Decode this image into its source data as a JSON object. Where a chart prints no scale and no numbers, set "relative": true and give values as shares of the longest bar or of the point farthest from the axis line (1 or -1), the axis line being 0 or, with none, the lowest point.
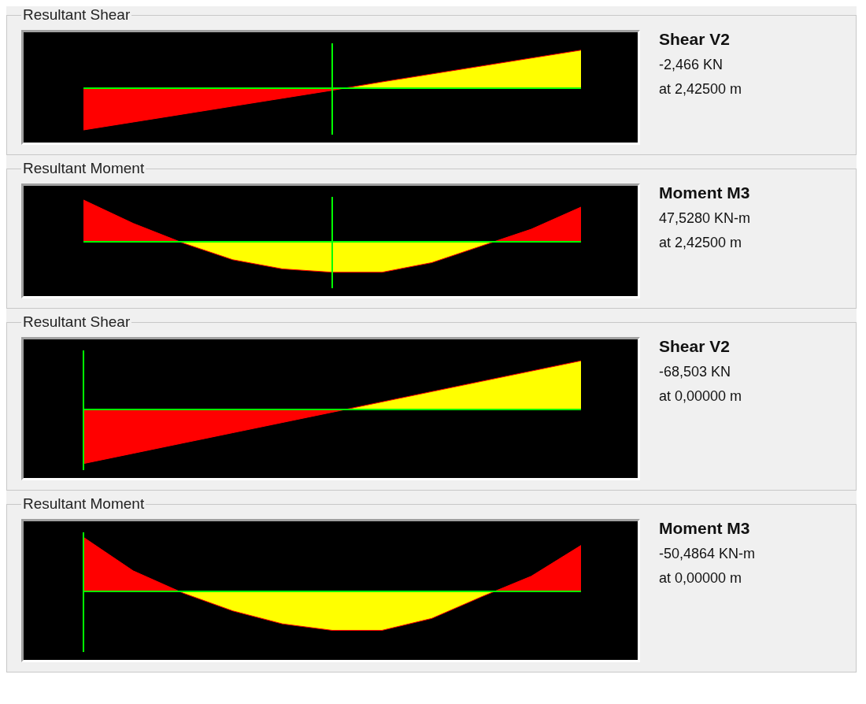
{
  "chart_data": [
    {
      "type": "area",
      "title": "Resultant Shear",
      "relative": true,
      "categories": [
        null,
        null,
        null,
        null,
        null,
        null,
        null,
        null,
        null,
        null,
        null
      ],
      "series": [
        {
          "color": "#ff0000",
          "values": [
            -1,
            -0.81,
            -0.62,
            -0.43,
            -0.24,
            -0.05,
            0.15,
            0.34,
            0.53,
            0.72,
            0.91
          ],
          "colors": [
            "#ff0000",
            "#ff0000",
            "#ff0000",
            "#ff0000",
            "#ff0000",
            "#ff0000",
            "#ffff00",
            "#ffff00",
            "#ffff00",
            "#ffff00",
            "#ffff00"
          ]
        }
      ],
      "ref_lines": [
        {
          "axis": "y",
          "value": 0,
          "color": "#00ff00"
        }
      ],
      "annotations": [
        "Shear V2",
        "-2,466 KN",
        "at 2,42500 m"
      ]
    },
    {
      "type": "area",
      "title": "Resultant Moment",
      "relative": true,
      "categories": [
        null,
        null,
        null,
        null,
        null,
        null,
        null,
        null,
        null,
        null,
        null
      ],
      "series": [
        {
          "color": "#ff0000",
          "values": [
            1,
            0.44,
            -0.03,
            -0.43,
            -0.65,
            -0.73,
            -0.73,
            -0.5,
            -0.1,
            0.3,
            0.83
          ],
          "colors": [
            "#ff0000",
            "#ff0000",
            "#ffff00",
            "#ffff00",
            "#ffff00",
            "#ffff00",
            "#ffff00",
            "#ffff00",
            "#ffff00",
            "#ff0000",
            "#ff0000"
          ]
        }
      ],
      "ref_lines": [
        {
          "axis": "y",
          "value": 0,
          "color": "#00ff00"
        }
      ],
      "annotations": [
        "Moment M3",
        "47,5280 KN-m",
        "at 2,42500 m"
      ]
    },
    {
      "type": "area",
      "title": "Resultant Shear",
      "relative": true,
      "categories": [
        null,
        null,
        null,
        null,
        null,
        null,
        null,
        null,
        null,
        null,
        null
      ],
      "series": [
        {
          "color": "#ff0000",
          "values": [
            -1,
            -0.81,
            -0.62,
            -0.43,
            -0.24,
            -0.05,
            0.14,
            0.33,
            0.52,
            0.71,
            0.9
          ],
          "colors": [
            "#ff0000",
            "#ff0000",
            "#ff0000",
            "#ff0000",
            "#ff0000",
            "#ff0000",
            "#ffff00",
            "#ffff00",
            "#ffff00",
            "#ffff00",
            "#ffff00"
          ]
        }
      ],
      "ref_lines": [
        {
          "axis": "y",
          "value": 0,
          "color": "#00ff00"
        }
      ],
      "annotations": [
        "Shear V2",
        "-68,503 KN",
        "at 0,00000 m"
      ]
    },
    {
      "type": "area",
      "title": "Resultant Moment",
      "relative": true,
      "categories": [
        null,
        null,
        null,
        null,
        null,
        null,
        null,
        null,
        null,
        null,
        null
      ],
      "series": [
        {
          "color": "#ff0000",
          "values": [
            1,
            0.38,
            -0.03,
            -0.36,
            -0.6,
            -0.72,
            -0.72,
            -0.5,
            -0.1,
            0.28,
            0.85
          ],
          "colors": [
            "#ff0000",
            "#ff0000",
            "#ffff00",
            "#ffff00",
            "#ffff00",
            "#ffff00",
            "#ffff00",
            "#ffff00",
            "#ffff00",
            "#ff0000",
            "#ff0000"
          ]
        }
      ],
      "ref_lines": [
        {
          "axis": "y",
          "value": 0,
          "color": "#00ff00"
        }
      ],
      "annotations": [
        "Moment M3",
        "-50,4864 KN-m",
        "at 0,00000 m"
      ]
    }
  ]
}
